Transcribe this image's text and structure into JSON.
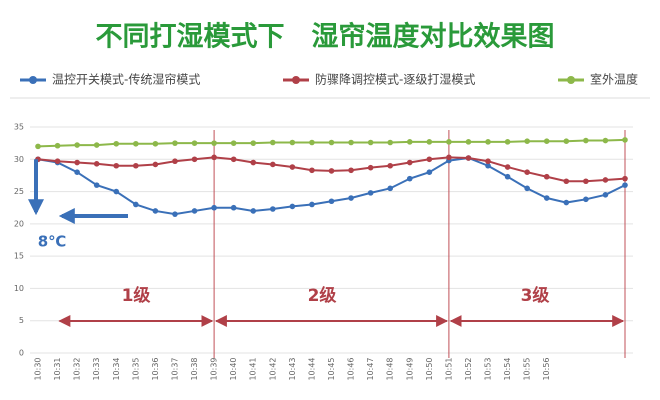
{
  "chart_data": {
    "type": "line",
    "title": "不同打湿模式下　湿帘温度对比效果图",
    "categories": [
      "10:30",
      "10:31",
      "10:32",
      "10:33",
      "10:34",
      "10:35",
      "10:36",
      "10:37",
      "10:38",
      "10:39",
      "10:40",
      "10:41",
      "10:42",
      "10:43",
      "10:44",
      "10:45",
      "10:46",
      "10:47",
      "10:48",
      "10:49",
      "10:50",
      "10:51",
      "10:52",
      "10:53",
      "10:54",
      "10:55",
      "10:56",
      null,
      null,
      null,
      null
    ],
    "series": [
      {
        "name": "温控开关模式-传统湿帘模式",
        "color": "#3a70b8",
        "values": [
          30,
          29.5,
          28,
          26,
          25,
          23,
          22,
          21.5,
          22,
          22.5,
          22.5,
          22,
          22.3,
          22.7,
          23,
          23.5,
          24,
          24.8,
          25.5,
          27,
          28,
          29.8,
          30.2,
          29,
          27.3,
          25.5,
          24,
          23.3,
          23.8,
          24.5,
          26
        ]
      },
      {
        "name": "防骤降调控模式-逐级打湿模式",
        "color": "#b04048",
        "values": [
          30,
          29.7,
          29.5,
          29.3,
          29,
          29,
          29.2,
          29.7,
          30,
          30.3,
          30,
          29.5,
          29.2,
          28.8,
          28.3,
          28.2,
          28.3,
          28.7,
          29,
          29.5,
          30,
          30.3,
          30.2,
          29.7,
          28.8,
          28,
          27.3,
          26.6,
          26.6,
          26.8,
          27
        ]
      },
      {
        "name": "室外温度",
        "color": "#8db84a",
        "values": [
          32,
          32.1,
          32.2,
          32.2,
          32.4,
          32.4,
          32.4,
          32.5,
          32.5,
          32.5,
          32.5,
          32.5,
          32.6,
          32.6,
          32.6,
          32.6,
          32.6,
          32.6,
          32.6,
          32.7,
          32.7,
          32.7,
          32.7,
          32.7,
          32.7,
          32.8,
          32.8,
          32.8,
          32.9,
          32.9,
          33
        ]
      }
    ],
    "ylim": [
      0,
      35
    ],
    "yticks": [
      0,
      5,
      10,
      15,
      20,
      25,
      30,
      35
    ],
    "grid": true,
    "annotations": [
      "8℃",
      "1级",
      "2级",
      "3级"
    ]
  }
}
